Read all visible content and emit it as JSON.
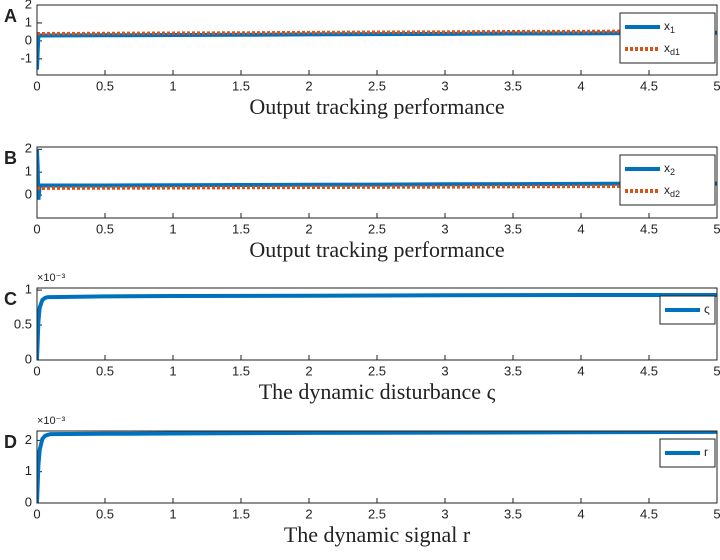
{
  "chart_data": [
    {
      "type": "line",
      "label": "A",
      "title": "Output tracking performance",
      "x": [
        0,
        0.005,
        0.01,
        0.02,
        0.03,
        0.5,
        1,
        1.5,
        2,
        2.5,
        3,
        3.5,
        4,
        4.5,
        5
      ],
      "series": [
        {
          "name": "x1",
          "color": "#0072bd",
          "style": "solid",
          "values": [
            -1.6,
            -0.6,
            0.3,
            0.3,
            0.3,
            0.31,
            0.33,
            0.34,
            0.36,
            0.38,
            0.39,
            0.41,
            0.42,
            0.44,
            0.45
          ]
        },
        {
          "name": "xd1",
          "color": "#d95319",
          "style": "dotted",
          "values": [
            0.4,
            0.4,
            0.4,
            0.4,
            0.4,
            0.41,
            0.43,
            0.44,
            0.46,
            0.48,
            0.49,
            0.51,
            0.52,
            0.54,
            0.55
          ]
        }
      ],
      "xlim": [
        0,
        5
      ],
      "xticks": [
        0,
        0.5,
        1,
        1.5,
        2,
        2.5,
        3,
        3.5,
        4,
        4.5,
        5
      ],
      "ylim": [
        -1.9,
        2
      ],
      "yticks": [
        -1,
        0,
        1,
        2
      ]
    },
    {
      "type": "line",
      "label": "B",
      "title": "Output tracking performance",
      "x": [
        0,
        0.005,
        0.01,
        0.02,
        0.03,
        0.5,
        1,
        1.5,
        2,
        2.5,
        3,
        3.5,
        4,
        4.5,
        5
      ],
      "series": [
        {
          "name": "x2",
          "color": "#0072bd",
          "style": "solid",
          "values": [
            2,
            1.2,
            -0.2,
            0.4,
            0.42,
            0.42,
            0.43,
            0.44,
            0.45,
            0.46,
            0.47,
            0.48,
            0.49,
            0.5,
            0.5
          ]
        },
        {
          "name": "xd2",
          "color": "#d95319",
          "style": "dotted",
          "values": [
            0.3,
            0.3,
            0.3,
            0.3,
            0.3,
            0.31,
            0.32,
            0.33,
            0.34,
            0.35,
            0.36,
            0.37,
            0.38,
            0.39,
            0.4
          ]
        }
      ],
      "xlim": [
        0,
        5
      ],
      "xticks": [
        0,
        0.5,
        1,
        1.5,
        2,
        2.5,
        3,
        3.5,
        4,
        4.5,
        5
      ],
      "ylim": [
        -1,
        2.1
      ],
      "yticks": [
        0,
        1,
        2
      ]
    },
    {
      "type": "line",
      "label": "C",
      "title": "The dynamic disturbance ς",
      "multiplier": "×10⁻³",
      "x": [
        0,
        0.01,
        0.02,
        0.04,
        0.06,
        0.08,
        0.1,
        0.5,
        1,
        2,
        3,
        4,
        5
      ],
      "series": [
        {
          "name": "ς",
          "color": "#0072bd",
          "style": "solid",
          "values": [
            0,
            0.55,
            0.75,
            0.86,
            0.89,
            0.9,
            0.9,
            0.91,
            0.915,
            0.92,
            0.925,
            0.93,
            0.93
          ]
        }
      ],
      "xlim": [
        0,
        5
      ],
      "xticks": [
        0,
        0.5,
        1,
        1.5,
        2,
        2.5,
        3,
        3.5,
        4,
        4.5,
        5
      ],
      "ylim": [
        0,
        1.03
      ],
      "yticks": [
        0,
        0.5,
        1
      ]
    },
    {
      "type": "line",
      "label": "D",
      "title": "The dynamic signal r",
      "multiplier": "×10⁻³",
      "x": [
        0,
        0.01,
        0.02,
        0.04,
        0.06,
        0.08,
        0.1,
        0.5,
        1,
        2,
        3,
        4,
        5
      ],
      "series": [
        {
          "name": "r",
          "color": "#0072bd",
          "style": "solid",
          "values": [
            0,
            1.2,
            1.7,
            2.05,
            2.15,
            2.18,
            2.2,
            2.21,
            2.22,
            2.24,
            2.25,
            2.26,
            2.27
          ]
        }
      ],
      "xlim": [
        0,
        5
      ],
      "xticks": [
        0,
        0.5,
        1,
        1.5,
        2,
        2.5,
        3,
        3.5,
        4,
        4.5,
        5
      ],
      "ylim": [
        0,
        2.3
      ],
      "yticks": [
        0,
        1,
        2
      ]
    }
  ]
}
